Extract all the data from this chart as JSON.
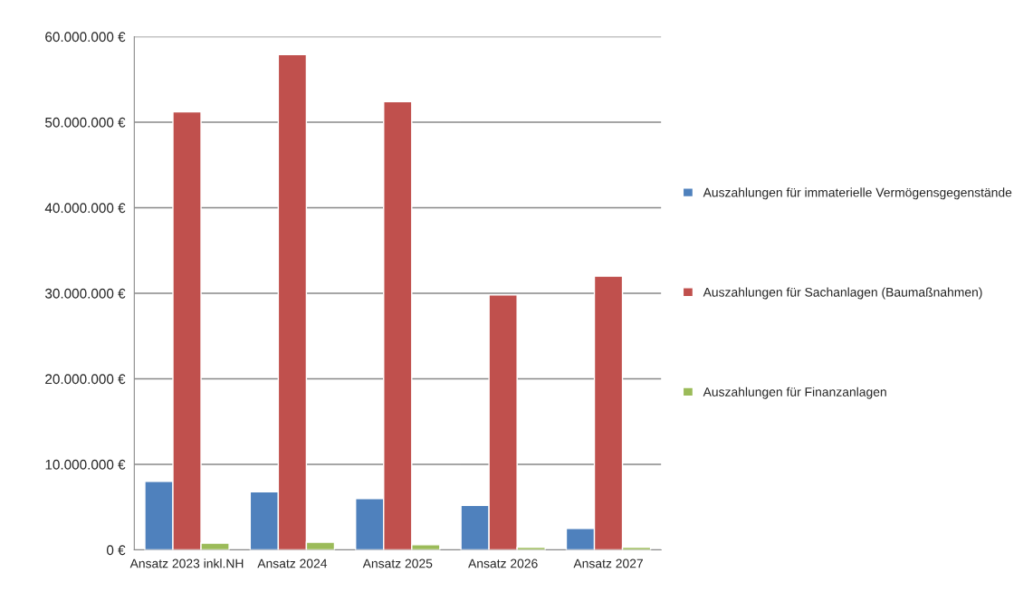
{
  "chart_data": {
    "type": "bar",
    "categories": [
      "Ansatz 2023 inkl.NH",
      "Ansatz 2024",
      "Ansatz 2025",
      "Ansatz 2026",
      "Ansatz 2027"
    ],
    "series": [
      {
        "name": "Auszahlungen für immaterielle Vermögensgegenstände",
        "color": "#4f81bd",
        "values": [
          8000000,
          6800000,
          6000000,
          5200000,
          2500000
        ]
      },
      {
        "name": "Auszahlungen für Sachanlagen (Baumaßnahmen)",
        "color": "#c0504d",
        "values": [
          51200000,
          57900000,
          52400000,
          29800000,
          32000000
        ]
      },
      {
        "name": "Auszahlungen für Finanzanlagen",
        "color": "#9bbb59",
        "values": [
          800000,
          900000,
          600000,
          300000,
          300000
        ]
      }
    ],
    "ylim": [
      0,
      60000000
    ],
    "yticks": [
      {
        "value": 0,
        "label": "0 €"
      },
      {
        "value": 10000000,
        "label": "10.000.000 €"
      },
      {
        "value": 20000000,
        "label": "20.000.000 €"
      },
      {
        "value": 30000000,
        "label": "30.000.000 €"
      },
      {
        "value": 40000000,
        "label": "40.000.000 €"
      },
      {
        "value": 50000000,
        "label": "50.000.000 €"
      },
      {
        "value": 60000000,
        "label": "60.000.000 €"
      }
    ],
    "grid": "y",
    "legend": "right"
  }
}
